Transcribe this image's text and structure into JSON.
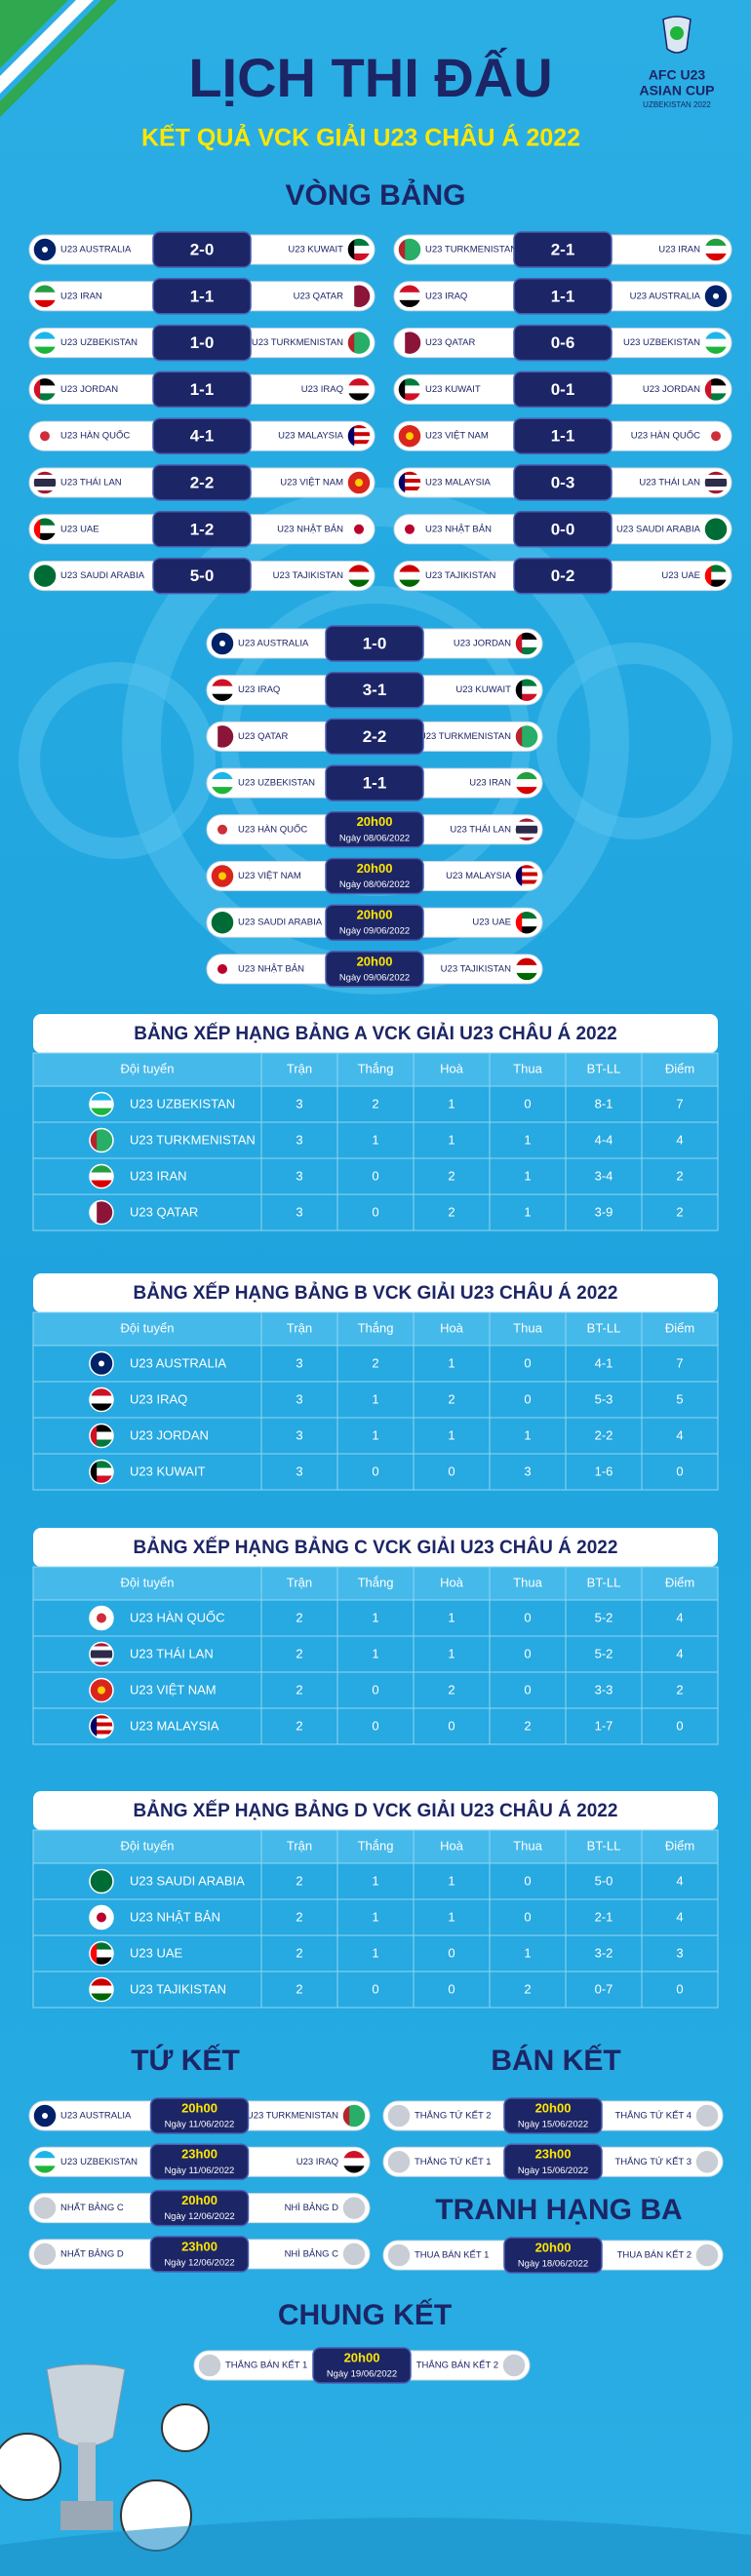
{
  "header": {
    "title": "LỊCH THI ĐẤU",
    "subtitle": "KẾT QUẢ VCK GIẢI U23 CHÂU Á 2022",
    "logo": {
      "line1": "AFC U23",
      "line2": "ASIAN CUP",
      "line3": "UZBEKISTAN 2022"
    }
  },
  "group_stage": {
    "title": "VÒNG BẢNG",
    "left": [
      {
        "home": "U23 AUSTRALIA",
        "score": "2-0",
        "away": "U23 KUWAIT"
      },
      {
        "home": "U23 IRAN",
        "score": "1-1",
        "away": "U23 QATAR"
      },
      {
        "home": "U23 UZBEKISTAN",
        "score": "1-0",
        "away": "U23 TURKMENISTAN"
      },
      {
        "home": "U23 JORDAN",
        "score": "1-1",
        "away": "U23 IRAQ"
      },
      {
        "home": "U23 HÀN QUỐC",
        "score": "4-1",
        "away": "U23 MALAYSIA"
      },
      {
        "home": "U23 THÁI LAN",
        "score": "2-2",
        "away": "U23 VIỆT NAM"
      },
      {
        "home": "U23 UAE",
        "score": "1-2",
        "away": "U23 NHẬT BẢN"
      },
      {
        "home": "U23 SAUDI ARABIA",
        "score": "5-0",
        "away": "U23 TAJIKISTAN"
      }
    ],
    "right": [
      {
        "home": "U23 TURKMENISTAN",
        "score": "2-1",
        "away": "U23 IRAN"
      },
      {
        "home": "U23 IRAQ",
        "score": "1-1",
        "away": "U23 AUSTRALIA"
      },
      {
        "home": "U23 QATAR",
        "score": "0-6",
        "away": "U23 UZBEKISTAN"
      },
      {
        "home": "U23 KUWAIT",
        "score": "0-1",
        "away": "U23 JORDAN"
      },
      {
        "home": "U23 VIỆT NAM",
        "score": "1-1",
        "away": "U23 HÀN QUỐC"
      },
      {
        "home": "U23 MALAYSIA",
        "score": "0-3",
        "away": "U23 THÁI LAN"
      },
      {
        "home": "U23 NHẬT BẢN",
        "score": "0-0",
        "away": "U23 SAUDI ARABIA"
      },
      {
        "home": "U23 TAJIKISTAN",
        "score": "0-2",
        "away": "U23 UAE"
      }
    ],
    "center": [
      {
        "home": "U23 AUSTRALIA",
        "score": "1-0",
        "away": "U23 JORDAN"
      },
      {
        "home": "U23 IRAQ",
        "score": "3-1",
        "away": "U23 KUWAIT"
      },
      {
        "home": "U23 QATAR",
        "score": "2-2",
        "away": "U23 TURKMENISTAN"
      },
      {
        "home": "U23 UZBEKISTAN",
        "score": "1-1",
        "away": "U23 IRAN"
      },
      {
        "home": "U23 HÀN QUỐC",
        "time": "20h00",
        "date": "Ngày 08/06/2022",
        "away": "U23 THÁI LAN"
      },
      {
        "home": "U23 VIỆT NAM",
        "time": "20h00",
        "date": "Ngày 08/06/2022",
        "away": "U23 MALAYSIA"
      },
      {
        "home": "U23 SAUDI ARABIA",
        "time": "20h00",
        "date": "Ngày 09/06/2022",
        "away": "U23 UAE"
      },
      {
        "home": "U23 NHẬT BẢN",
        "time": "20h00",
        "date": "Ngày 09/06/2022",
        "away": "U23 TAJIKISTAN"
      }
    ]
  },
  "standings": [
    {
      "title": "BẢNG XẾP HẠNG BẢNG A VCK GIẢI U23 CHÂU Á 2022",
      "columns": [
        "Đội tuyển",
        "Trận",
        "Thắng",
        "Hoà",
        "Thua",
        "BT-LL",
        "Điểm"
      ],
      "rows": [
        [
          "U23 UZBEKISTAN",
          3,
          2,
          1,
          0,
          "8-1",
          7
        ],
        [
          "U23 TURKMENISTAN",
          3,
          1,
          1,
          1,
          "4-4",
          4
        ],
        [
          "U23 IRAN",
          3,
          0,
          2,
          1,
          "3-4",
          2
        ],
        [
          "U23 QATAR",
          3,
          0,
          2,
          1,
          "3-9",
          2
        ]
      ]
    },
    {
      "title": "BẢNG XẾP HẠNG BẢNG B VCK GIẢI U23 CHÂU Á 2022",
      "columns": [
        "Đội tuyển",
        "Trận",
        "Thắng",
        "Hoà",
        "Thua",
        "BT-LL",
        "Điểm"
      ],
      "rows": [
        [
          "U23 AUSTRALIA",
          3,
          2,
          1,
          0,
          "4-1",
          7
        ],
        [
          "U23 IRAQ",
          3,
          1,
          2,
          0,
          "5-3",
          5
        ],
        [
          "U23 JORDAN",
          3,
          1,
          1,
          1,
          "2-2",
          4
        ],
        [
          "U23 KUWAIT",
          3,
          0,
          0,
          3,
          "1-6",
          0
        ]
      ]
    },
    {
      "title": "BẢNG XẾP HẠNG BẢNG C VCK GIẢI U23 CHÂU Á 2022",
      "columns": [
        "Đội tuyển",
        "Trận",
        "Thắng",
        "Hoà",
        "Thua",
        "BT-LL",
        "Điểm"
      ],
      "rows": [
        [
          "U23 HÀN QUỐC",
          2,
          1,
          1,
          0,
          "5-2",
          4
        ],
        [
          "U23 THÁI LAN",
          2,
          1,
          1,
          0,
          "5-2",
          4
        ],
        [
          "U23 VIỆT NAM",
          2,
          0,
          2,
          0,
          "3-3",
          2
        ],
        [
          "U23 MALAYSIA",
          2,
          0,
          0,
          2,
          "1-7",
          0
        ]
      ]
    },
    {
      "title": "BẢNG XẾP HẠNG BẢNG D VCK GIẢI U23 CHÂU Á 2022",
      "columns": [
        "Đội tuyển",
        "Trận",
        "Thắng",
        "Hoà",
        "Thua",
        "BT-LL",
        "Điểm"
      ],
      "rows": [
        [
          "U23 SAUDI ARABIA",
          2,
          1,
          1,
          0,
          "5-0",
          4
        ],
        [
          "U23 NHẬT BẢN",
          2,
          1,
          1,
          0,
          "2-1",
          4
        ],
        [
          "U23 UAE",
          2,
          1,
          0,
          1,
          "3-2",
          3
        ],
        [
          "U23 TAJIKISTAN",
          2,
          0,
          0,
          2,
          "0-7",
          0
        ]
      ]
    }
  ],
  "quarterfinals": {
    "title": "TỨ KẾT",
    "matches": [
      {
        "home": "U23 AUSTRALIA",
        "time": "20h00",
        "date": "Ngày 11/06/2022",
        "away": "U23 TURKMENISTAN"
      },
      {
        "home": "U23 UZBEKISTAN",
        "time": "23h00",
        "date": "Ngày 11/06/2022",
        "away": "U23 IRAQ"
      },
      {
        "home": "NHẤT BẢNG C",
        "time": "20h00",
        "date": "Ngày 12/06/2022",
        "away": "NHÌ BẢNG D"
      },
      {
        "home": "NHẤT BẢNG D",
        "time": "23h00",
        "date": "Ngày 12/06/2022",
        "away": "NHÌ BẢNG C"
      }
    ]
  },
  "semifinals": {
    "title": "BÁN KẾT",
    "matches": [
      {
        "home": "THẮNG TỨ KẾT 2",
        "time": "20h00",
        "date": "Ngày 15/06/2022",
        "away": "THẮNG TỨ KẾT 4"
      },
      {
        "home": "THẮNG TỨ KẾT 1",
        "time": "23h00",
        "date": "Ngày 15/06/2022",
        "away": "THẮNG TỨ KẾT 3"
      }
    ]
  },
  "third_place": {
    "title": "TRANH HẠNG BA",
    "matches": [
      {
        "home": "THUA BÁN KẾT 1",
        "time": "20h00",
        "date": "Ngày 18/06/2022",
        "away": "THUA BÁN KẾT 2"
      }
    ]
  },
  "final": {
    "title": "CHUNG KẾT",
    "matches": [
      {
        "home": "THẮNG BÁN KẾT 1",
        "time": "20h00",
        "date": "Ngày 19/06/2022",
        "away": "THẮNG BÁN KẾT 2"
      }
    ]
  }
}
